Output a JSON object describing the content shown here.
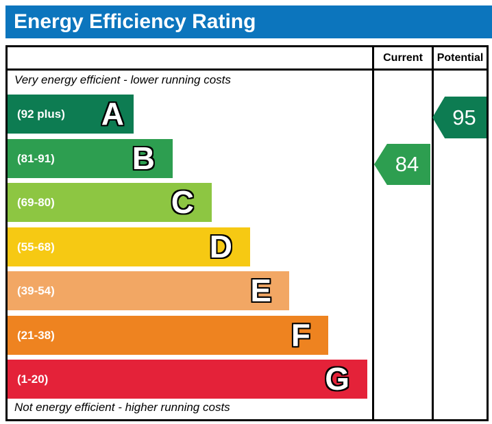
{
  "title": "Energy Efficiency Rating",
  "columns": {
    "current": "Current",
    "potential": "Potential"
  },
  "top_note": "Very energy efficient - lower running costs",
  "bottom_note": "Not energy efficient - higher running costs",
  "bands": [
    {
      "letter": "A",
      "range": "(92 plus)",
      "color": "#0d7c52"
    },
    {
      "letter": "B",
      "range": "(81-91)",
      "color": "#2d9e50"
    },
    {
      "letter": "C",
      "range": "(69-80)",
      "color": "#8dc642"
    },
    {
      "letter": "D",
      "range": "(55-68)",
      "color": "#f6c913"
    },
    {
      "letter": "E",
      "range": "(39-54)",
      "color": "#f2a764"
    },
    {
      "letter": "F",
      "range": "(21-38)",
      "color": "#ee8320"
    },
    {
      "letter": "G",
      "range": "(1-20)",
      "color": "#e42239"
    }
  ],
  "ratings": {
    "current": {
      "value": "84",
      "band": "B",
      "color": "#2d9e50"
    },
    "potential": {
      "value": "95",
      "band": "A",
      "color": "#0d7c52"
    }
  },
  "colors": {
    "header_bg": "#0c75bd",
    "border": "#000000",
    "background": "#ffffff"
  },
  "chart_data": {
    "type": "bar",
    "title": "Energy Efficiency Rating",
    "categories": [
      "A",
      "B",
      "C",
      "D",
      "E",
      "F",
      "G"
    ],
    "band_ranges": [
      "92 plus",
      "81-91",
      "69-80",
      "55-68",
      "39-54",
      "21-38",
      "1-20"
    ],
    "band_colors": [
      "#0d7c52",
      "#2d9e50",
      "#8dc642",
      "#f6c913",
      "#f2a764",
      "#ee8320",
      "#e42239"
    ],
    "series": [
      {
        "name": "Current",
        "value": 84,
        "band": "B"
      },
      {
        "name": "Potential",
        "value": 95,
        "band": "A"
      }
    ],
    "annotations": [
      "Very energy efficient - lower running costs",
      "Not energy efficient - higher running costs"
    ],
    "legend_position": "top-right-columns",
    "grid": false
  }
}
